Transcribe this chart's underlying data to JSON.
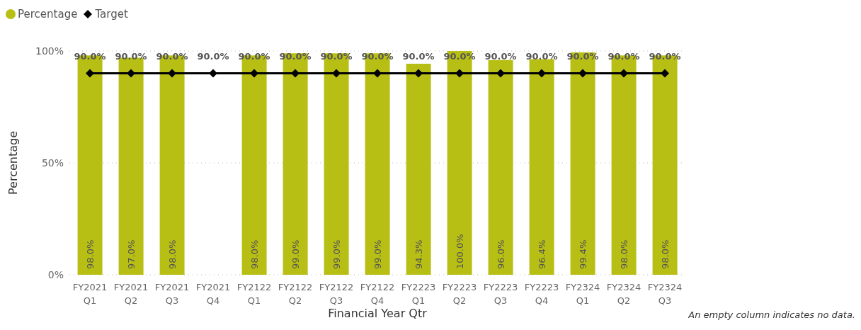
{
  "chart_data": {
    "type": "bar",
    "categories": [
      "FY2021 Q1",
      "FY2021 Q2",
      "FY2021 Q3",
      "FY2021 Q4",
      "FY2122 Q1",
      "FY2122 Q2",
      "FY2122 Q3",
      "FY2122 Q4",
      "FY2223 Q1",
      "FY2223 Q2",
      "FY2223 Q3",
      "FY2223 Q4",
      "FY2324 Q1",
      "FY2324 Q2",
      "FY2324 Q3"
    ],
    "series": [
      {
        "name": "Percentage",
        "color": "#b8bf14",
        "values": [
          98,
          97,
          98,
          null,
          98,
          99,
          99,
          99,
          94.3,
          100,
          96,
          96.4,
          99.4,
          98,
          98
        ],
        "value_labels": [
          "98.0%",
          "97.0%",
          "98.0%",
          null,
          "98.0%",
          "99.0%",
          "99.0%",
          "99.0%",
          "94.3%",
          "100.0%",
          "96.0%",
          "96.4%",
          "99.4%",
          "98.0%",
          "98.0%"
        ]
      },
      {
        "name": "Target",
        "type": "line",
        "color": "#000000",
        "marker": "diamond",
        "values": [
          90,
          90,
          90,
          90,
          90,
          90,
          90,
          90,
          90,
          90,
          90,
          90,
          90,
          90,
          90
        ],
        "value_labels": [
          "90.0%",
          "90.0%",
          "90.0%",
          "90.0%",
          "90.0%",
          "90.0%",
          "90.0%",
          "90.0%",
          "90.0%",
          "90.0%",
          "90.0%",
          "90.0%",
          "90.0%",
          "90.0%",
          "90.0%"
        ]
      }
    ],
    "xlabel": "Financial Year Qtr",
    "ylabel": "Percentage",
    "ylim": [
      0,
      100
    ],
    "yticks": [
      {
        "value": 0,
        "label": "0%"
      },
      {
        "value": 50,
        "label": "50%"
      },
      {
        "value": 100,
        "label": "100%"
      }
    ],
    "grid": "y",
    "legend": "top left",
    "annotations": [
      "An empty column indicates no data."
    ]
  }
}
